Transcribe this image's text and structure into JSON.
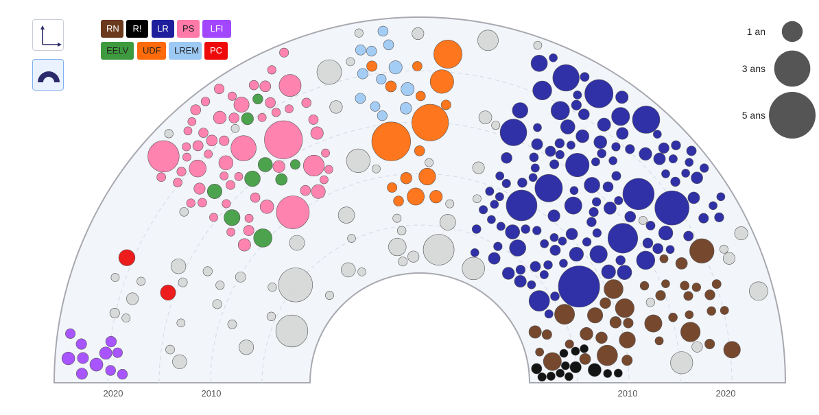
{
  "controls": {
    "axes_view_icon": "axes-icon",
    "arc_view_icon": "hemicycle-icon"
  },
  "legend": [
    {
      "label": "RN",
      "color": "#6b3a1d",
      "text_color": "#ffffff"
    },
    {
      "label": "R!",
      "color": "#000000",
      "text_color": "#ffffff"
    },
    {
      "label": "LR",
      "color": "#1f1f9e",
      "text_color": "#ffffff"
    },
    {
      "label": "PS",
      "color": "#ff7aa8",
      "text_color": "#222222"
    },
    {
      "label": "LFI",
      "color": "#a347ff",
      "text_color": "#ffffff"
    },
    {
      "label": "EELV",
      "color": "#3e9a3e",
      "text_color": "#222222"
    },
    {
      "label": "UDF",
      "color": "#ff6a0a",
      "text_color": "#222222"
    },
    {
      "label": "LREM",
      "color": "#9dc9f5",
      "text_color": "#222222"
    },
    {
      "label": "PC",
      "color": "#ee0a0a",
      "text_color": "#ffffff"
    }
  ],
  "size_legend": [
    {
      "label": "1 an",
      "years": 1
    },
    {
      "label": "3 ans",
      "years": 3
    },
    {
      "label": "5 ans",
      "years": 5
    }
  ],
  "chart_data": {
    "type": "scatter",
    "title": "",
    "radial_axis_ticks_left": [
      "2020",
      "2010"
    ],
    "radial_axis_ticks_right": [
      "2010",
      "2020"
    ],
    "other_color": "#d6d6d6",
    "groups": [
      {
        "party": "LFI",
        "count": 11,
        "color": "#a347ff"
      },
      {
        "party": "PC",
        "count": 2,
        "color": "#ee0a0a"
      },
      {
        "party": "EELV",
        "count": 9,
        "color": "#3e9a3e"
      },
      {
        "party": "PS",
        "count": 58,
        "color": "#ff7aa8"
      },
      {
        "party": "LREM",
        "count": 12,
        "color": "#9dc9f5"
      },
      {
        "party": "UDF",
        "count": 16,
        "color": "#ff6a0a"
      },
      {
        "party": "LR",
        "count": 120,
        "color": "#1f1f9e"
      },
      {
        "party": "RN",
        "count": 38,
        "color": "#6b3a1d"
      },
      {
        "party": "R!",
        "count": 13,
        "color": "#000000"
      },
      {
        "party": "Autres",
        "count": 60,
        "color": "#d6d6d6"
      }
    ]
  }
}
